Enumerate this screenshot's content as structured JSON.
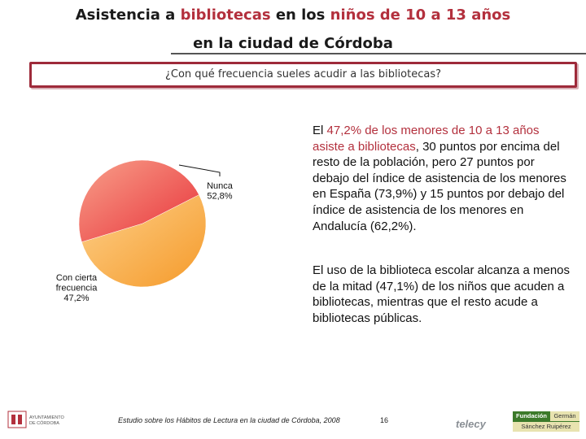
{
  "header": {
    "title_line1_parts": [
      "Asistencia a ",
      "bibliotecas",
      " en los ",
      "niños de 10 a 13 años"
    ],
    "title_line2": "en la ciudad de Córdoba",
    "question": "¿Con qué frecuencia sueles acudir a las bibliotecas?"
  },
  "chart_data": {
    "type": "pie",
    "title": "",
    "slices": [
      {
        "label_lines": [
          "Nunca",
          "52,8%"
        ],
        "value": 52.8,
        "color": "#fbb04a"
      },
      {
        "label_lines": [
          "Con cierta",
          "frecuencia",
          "47,2%"
        ],
        "value": 47.2,
        "color": "#f04848"
      }
    ]
  },
  "body": {
    "p1_parts": [
      "El ",
      "47,2% de los menores de 10 a 13 años asiste a bibliotecas",
      ", 30 puntos por encima del resto de la población, pero 27 puntos por debajo del índice de asistencia de los menores en España (73,9%) y 15 puntos por debajo del índice de asistencia de los menores en Andalucía (62,2%)."
    ],
    "p2": "El uso de la biblioteca escolar alcanza a menos de la mitad (47,1%) de los niños que acuden a bibliotecas, mientras que el resto acude a bibliotecas públicas."
  },
  "footer": {
    "logo_left_lines": [
      "AYUNTAMIENTO",
      "DE CÓRDOBA"
    ],
    "study_parts": [
      "Estudio sobre los Hábitos de Lectura en la ciudad de Córdoba",
      ", 2008"
    ],
    "page_number": "16",
    "telecy": "telecy",
    "fundacion_lines": [
      "Fundación",
      "Germán",
      "Sánchez Ruipérez"
    ]
  },
  "colors": {
    "accent": "#b3303d",
    "box_border": "#9e2a3a",
    "pie_orange": "#fbb04a",
    "pie_red": "#f04848"
  }
}
